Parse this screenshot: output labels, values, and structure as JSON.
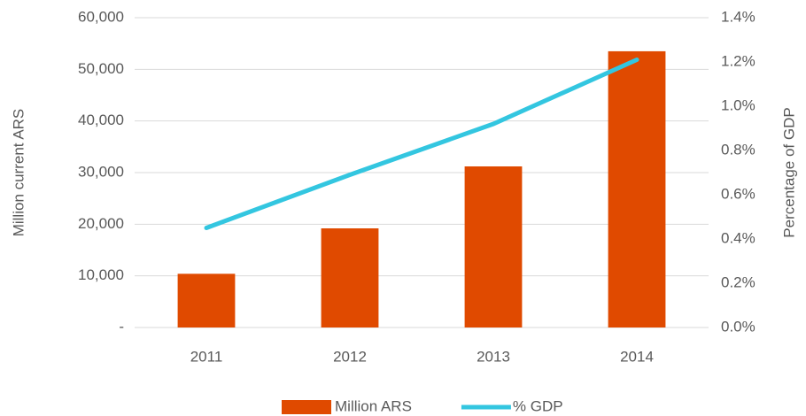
{
  "chart_data": {
    "type": "bar",
    "categories": [
      "2011",
      "2012",
      "2013",
      "2014"
    ],
    "y_label": "Million current ARS",
    "y2_label": "Percentage of GDP",
    "series": [
      {
        "name": "Million ARS",
        "type": "bar",
        "color": "#e04a00",
        "values": [
          10400,
          19200,
          31200,
          53500
        ]
      },
      {
        "name": "% GDP",
        "type": "line",
        "axis": "y2",
        "color": "#33c6e0",
        "values": [
          0.45,
          0.69,
          0.92,
          1.21
        ]
      }
    ],
    "ylim": [
      0,
      60000
    ],
    "yticks": [
      {
        "value": 0,
        "label": "-"
      },
      {
        "value": 10000,
        "label": "10,000"
      },
      {
        "value": 20000,
        "label": "20,000"
      },
      {
        "value": 30000,
        "label": "30,000"
      },
      {
        "value": 40000,
        "label": "40,000"
      },
      {
        "value": 50000,
        "label": "50,000"
      },
      {
        "value": 60000,
        "label": "60,000"
      }
    ],
    "y2lim": [
      0,
      1.4
    ],
    "y2ticks": [
      {
        "value": 0,
        "label": "0.0%"
      },
      {
        "value": 0.2,
        "label": "0.2%"
      },
      {
        "value": 0.4,
        "label": "0.4%"
      },
      {
        "value": 0.6,
        "label": "0.6%"
      },
      {
        "value": 0.8,
        "label": "0.8%"
      },
      {
        "value": 1.0,
        "label": "1.0%"
      },
      {
        "value": 1.2,
        "label": "1.2%"
      },
      {
        "value": 1.4,
        "label": "1.4%"
      }
    ],
    "grid": true,
    "legend": "bottom"
  }
}
